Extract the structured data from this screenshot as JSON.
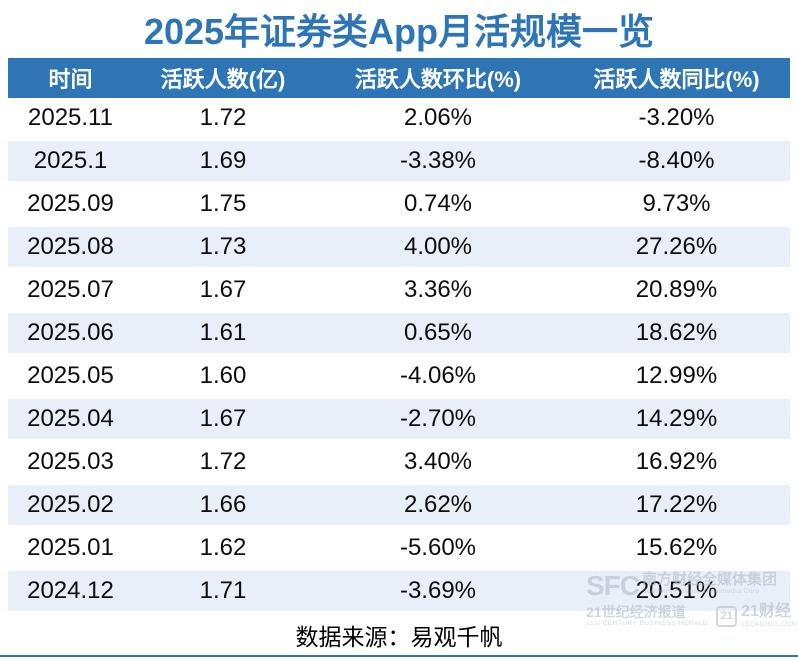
{
  "page": {
    "title": "2025年证券类App月活规模一览",
    "source_note": "数据来源：易观千帆"
  },
  "table": {
    "headers": [
      "时间",
      "活跃人数(亿)",
      "活跃人数环比(%)",
      "活跃人数同比(%)"
    ],
    "rows": [
      [
        "2025.11",
        "1.72",
        "2.06%",
        "-3.20%"
      ],
      [
        "2025.1",
        "1.69",
        "-3.38%",
        "-8.40%"
      ],
      [
        "2025.09",
        "1.75",
        "0.74%",
        "9.73%"
      ],
      [
        "2025.08",
        "1.73",
        "4.00%",
        "27.26%"
      ],
      [
        "2025.07",
        "1.67",
        "3.36%",
        "20.89%"
      ],
      [
        "2025.06",
        "1.61",
        "0.65%",
        "18.62%"
      ],
      [
        "2025.05",
        "1.60",
        "-4.06%",
        "12.99%"
      ],
      [
        "2025.04",
        "1.67",
        "-2.70%",
        "14.29%"
      ],
      [
        "2025.03",
        "1.72",
        "3.40%",
        "16.92%"
      ],
      [
        "2025.02",
        "1.66",
        "2.62%",
        "17.22%"
      ],
      [
        "2025.01",
        "1.62",
        "-5.60%",
        "15.62%"
      ],
      [
        "2024.12",
        "1.71",
        "-3.69%",
        "20.51%"
      ]
    ]
  },
  "watermark": {
    "sfc": "SFC",
    "group_cn": "南方财经全媒体集团",
    "group_en": "Southern Finance Omnimedia Corp.",
    "herald_cn": "21世纪经济报道",
    "herald_en": "21st CENTURY BUSINESS HERALD",
    "logo_21": "21",
    "caijing_cn": "21财经",
    "caijing_en": "21CAIJING.COM"
  },
  "colors": {
    "title_text": "#2E75B6",
    "header_bg": "#2E75B5",
    "band_row_bg": "#E8EFF8",
    "bottom_line": "#2E75B6"
  },
  "chart_data": {
    "type": "table",
    "title": "2025年证券类App月活规模一览",
    "columns": [
      "时间",
      "活跃人数(亿)",
      "活跃人数环比(%)",
      "活跃人数同比(%)"
    ],
    "categories": [
      "2025.11",
      "2025.1",
      "2025.09",
      "2025.08",
      "2025.07",
      "2025.06",
      "2025.05",
      "2025.04",
      "2025.03",
      "2025.02",
      "2025.01",
      "2024.12"
    ],
    "series": [
      {
        "name": "活跃人数(亿)",
        "values": [
          1.72,
          1.69,
          1.75,
          1.73,
          1.67,
          1.61,
          1.6,
          1.67,
          1.72,
          1.66,
          1.62,
          1.71
        ]
      },
      {
        "name": "活跃人数环比(%)",
        "values": [
          2.06,
          -3.38,
          0.74,
          4.0,
          3.36,
          0.65,
          -4.06,
          -2.7,
          3.4,
          2.62,
          -5.6,
          -3.69
        ]
      },
      {
        "name": "活跃人数同比(%)",
        "values": [
          -3.2,
          -8.4,
          9.73,
          27.26,
          20.89,
          18.62,
          12.99,
          14.29,
          16.92,
          17.22,
          15.62,
          20.51
        ]
      }
    ],
    "source": "数据来源：易观千帆"
  }
}
